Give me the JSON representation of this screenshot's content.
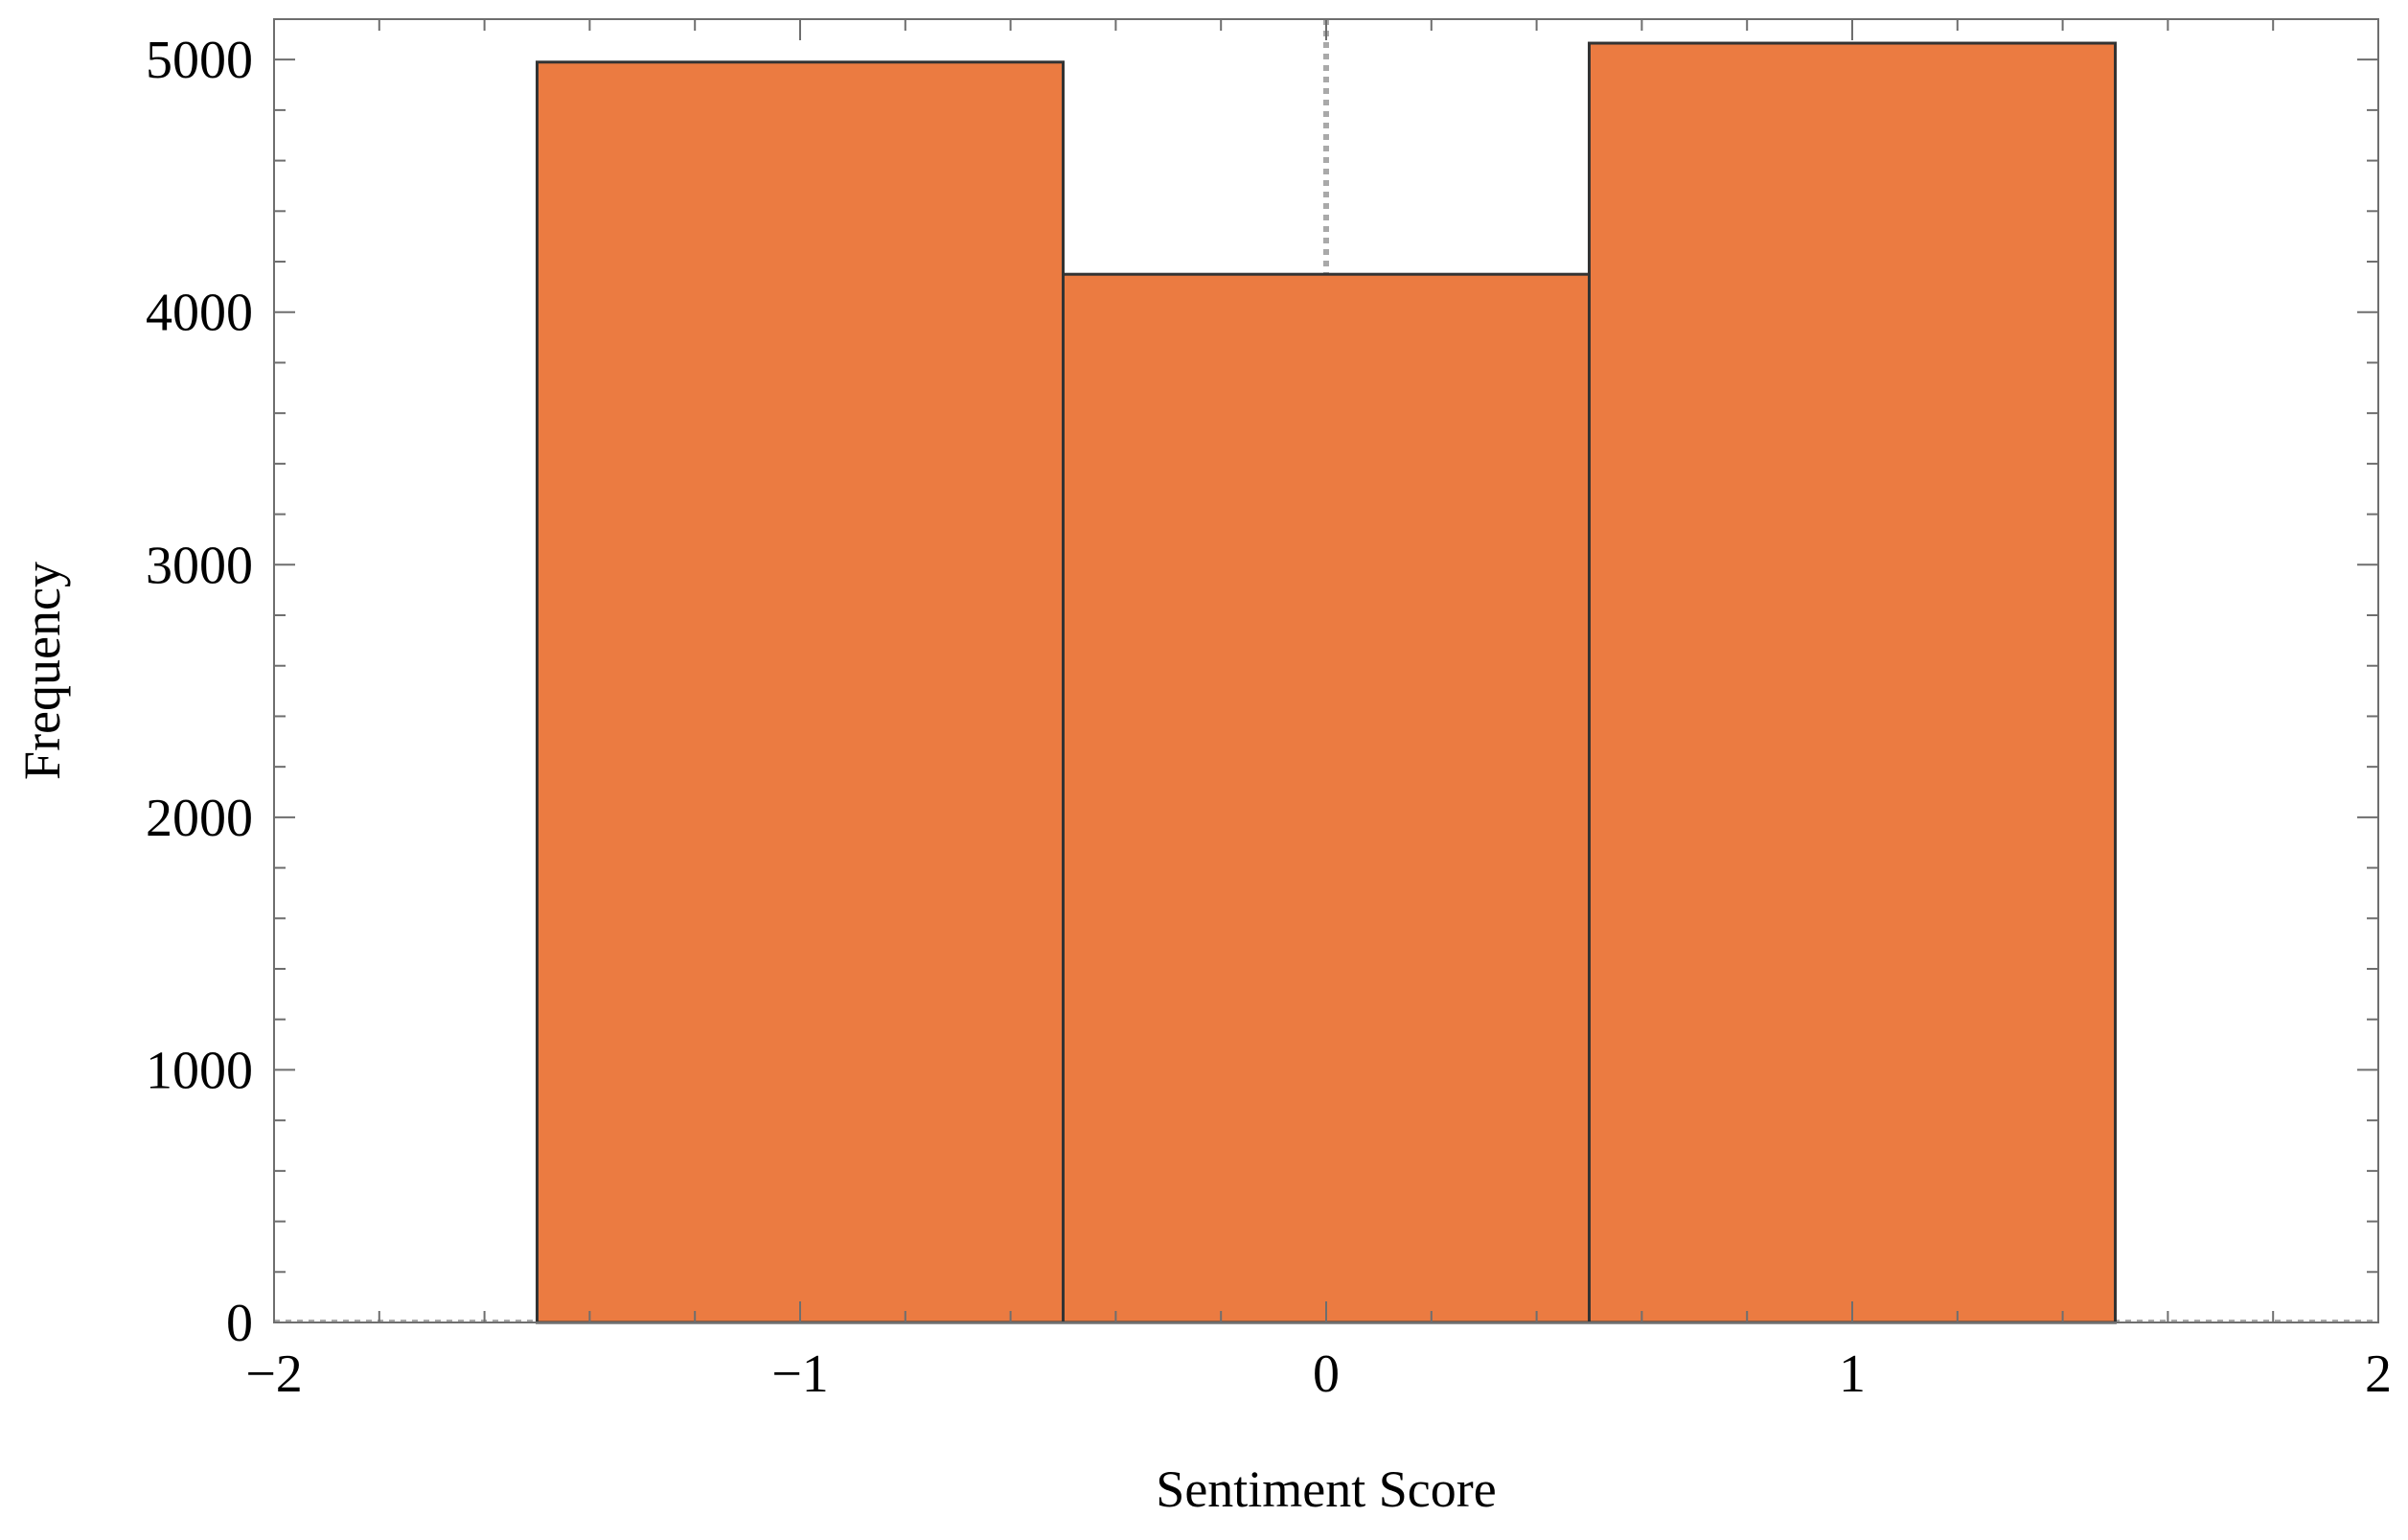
{
  "chart_data": {
    "type": "bar",
    "subtype": "histogram",
    "xlabel": "Sentiment Score",
    "ylabel": "Frequency",
    "xlim": [
      -2,
      2
    ],
    "ylim": [
      0,
      5160
    ],
    "x_ticks": [
      -2,
      -1,
      0,
      1,
      2
    ],
    "x_tick_labels": [
      "−2",
      "−1",
      "0",
      "1",
      "2"
    ],
    "y_ticks": [
      0,
      1000,
      2000,
      3000,
      4000,
      5000
    ],
    "y_tick_labels": [
      "0",
      "1000",
      "2000",
      "3000",
      "4000",
      "5000"
    ],
    "bins": [
      {
        "x0": -1.5,
        "x1": -0.5,
        "value": 4990
      },
      {
        "x0": -0.5,
        "x1": 0.5,
        "value": 4150
      },
      {
        "x0": 0.5,
        "x1": 1.5,
        "value": 5065
      }
    ],
    "bar_color": "#EB7B41",
    "bar_edge_color": "#333333",
    "grid": false,
    "legend": "none",
    "reference_lines": {
      "x_zero_dotted": true,
      "y_zero_dotted": true
    }
  }
}
